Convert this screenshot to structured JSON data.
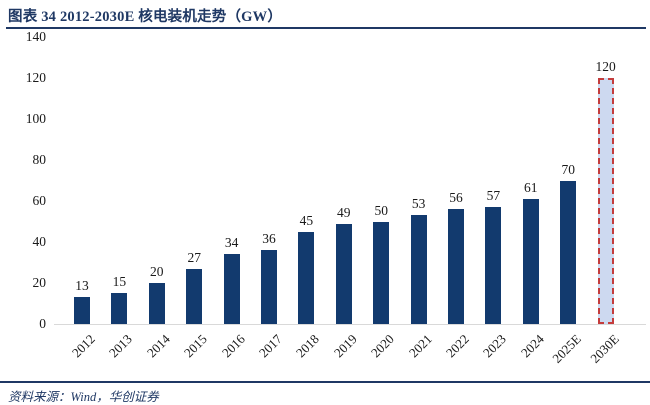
{
  "header": {
    "title": "图表 34  2012-2030E 核电装机走势（GW）"
  },
  "footer": {
    "source": "资料来源：Wind，华创证券"
  },
  "colors": {
    "accent_navy": "#1F3864",
    "bar_fill": "#123A6E",
    "forecast_bar_fill": "#CDD9F0",
    "forecast_bar_border": "#C43C3C",
    "axis_line": "#D9D9D9",
    "label_text": "#1A1A1A"
  },
  "chart_data": {
    "type": "bar",
    "title": "2012-2030E 核电装机走势（GW）",
    "unit": "GW",
    "categories": [
      "2012",
      "2013",
      "2014",
      "2015",
      "2016",
      "2017",
      "2018",
      "2019",
      "2020",
      "2021",
      "2022",
      "2023",
      "2024",
      "2025E",
      "2030E"
    ],
    "values": [
      13,
      15,
      20,
      27,
      34,
      36,
      45,
      49,
      50,
      53,
      56,
      57,
      61,
      70,
      120
    ],
    "data_labels": [
      "13",
      "15",
      "20",
      "27",
      "34",
      "36",
      "45",
      "49",
      "50",
      "53",
      "56",
      "57",
      "61",
      "70",
      "120"
    ],
    "ylim": [
      0,
      140
    ],
    "yticks": [
      0,
      20,
      40,
      60,
      80,
      100,
      120,
      140
    ],
    "grid": false,
    "legend": "none",
    "xlabel_rotation_deg": -45,
    "forecast_category": "2030E",
    "forecast_style": "light-blue fill with red dashed outline"
  }
}
